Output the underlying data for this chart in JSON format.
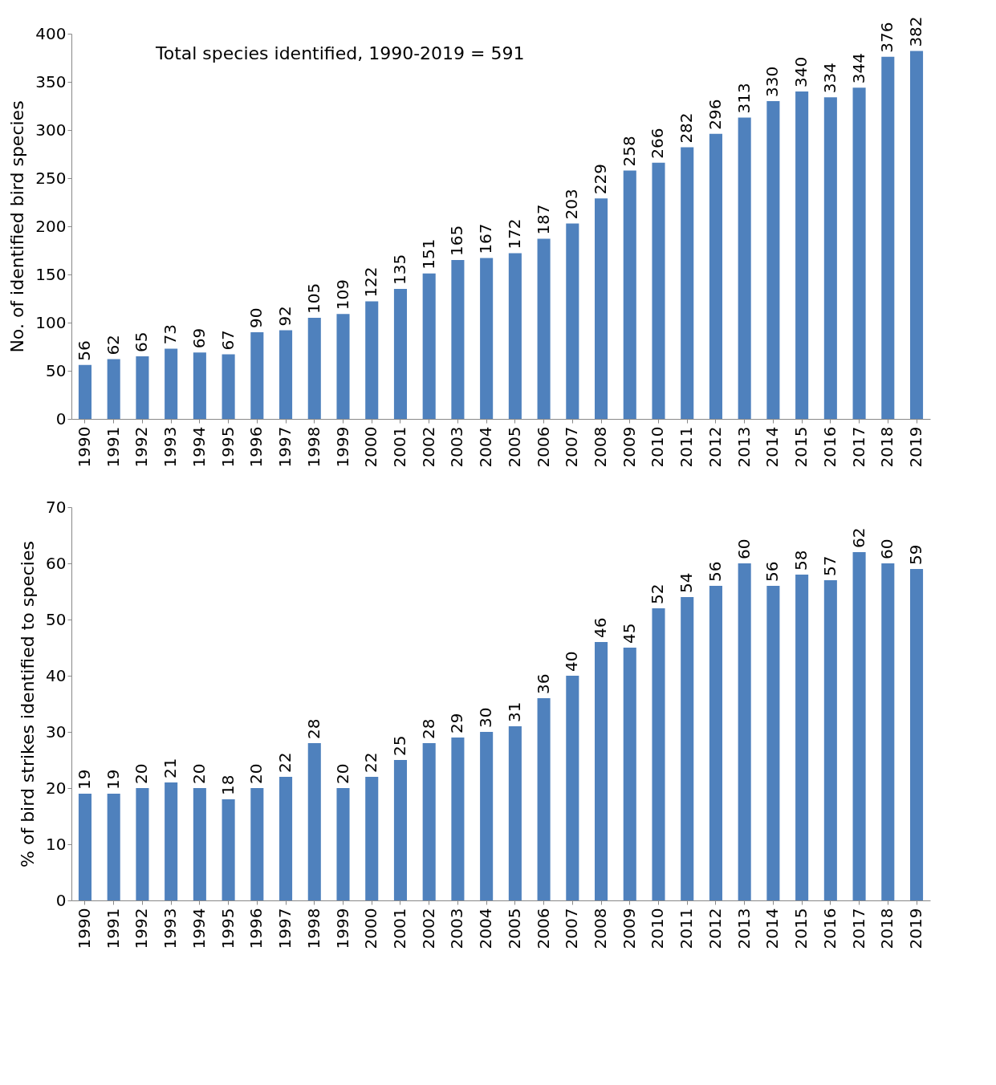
{
  "chart_data": [
    {
      "type": "bar",
      "ylabel": "No. of identified bird species",
      "annotations": [
        "Total species identified, 1990-2019 = 591"
      ],
      "categories": [
        "1990",
        "1991",
        "1992",
        "1993",
        "1994",
        "1995",
        "1996",
        "1997",
        "1998",
        "1999",
        "2000",
        "2001",
        "2002",
        "2003",
        "2004",
        "2005",
        "2006",
        "2007",
        "2008",
        "2009",
        "2010",
        "2011",
        "2012",
        "2013",
        "2014",
        "2015",
        "2016",
        "2017",
        "2018",
        "2019"
      ],
      "values": [
        56,
        62,
        65,
        73,
        69,
        67,
        90,
        92,
        105,
        109,
        122,
        135,
        151,
        165,
        167,
        172,
        187,
        203,
        229,
        258,
        266,
        282,
        296,
        313,
        330,
        340,
        334,
        344,
        376,
        382
      ],
      "color": "#4f81bd",
      "ylim": [
        0,
        400
      ],
      "yticks": [
        0,
        50,
        100,
        150,
        200,
        250,
        300,
        350,
        400
      ],
      "data_labels": true
    },
    {
      "type": "bar",
      "ylabel": "% of bird strikes identified to species",
      "categories": [
        "1990",
        "1991",
        "1992",
        "1993",
        "1994",
        "1995",
        "1996",
        "1997",
        "1998",
        "1999",
        "2000",
        "2001",
        "2002",
        "2003",
        "2004",
        "2005",
        "2006",
        "2007",
        "2008",
        "2009",
        "2010",
        "2011",
        "2012",
        "2013",
        "2014",
        "2015",
        "2016",
        "2017",
        "2018",
        "2019"
      ],
      "values": [
        19,
        19,
        20,
        21,
        20,
        18,
        20,
        22,
        28,
        20,
        22,
        25,
        28,
        29,
        30,
        31,
        36,
        40,
        46,
        45,
        52,
        54,
        56,
        60,
        56,
        58,
        57,
        62,
        60,
        59
      ],
      "color": "#4f81bd",
      "ylim": [
        0,
        70
      ],
      "yticks": [
        0,
        10,
        20,
        30,
        40,
        50,
        60,
        70
      ],
      "data_labels": true
    }
  ]
}
